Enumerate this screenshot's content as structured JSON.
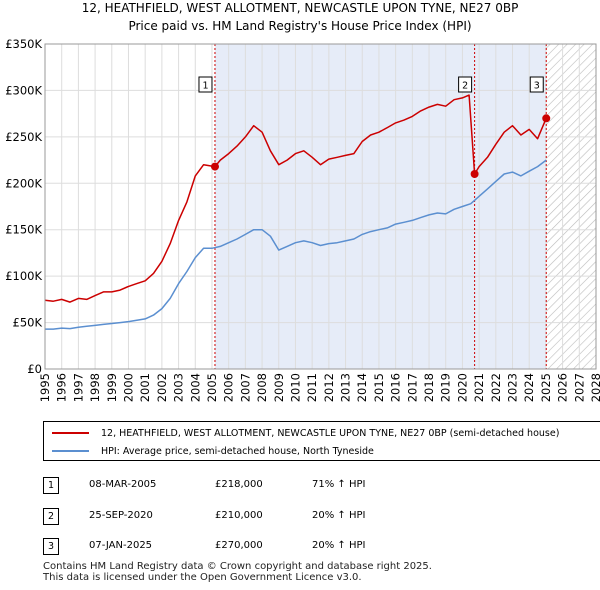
{
  "title_line1": "12, HEATHFIELD, WEST ALLOTMENT, NEWCASTLE UPON TYNE, NE27 0BP",
  "title_line2": "Price paid vs. HM Land Registry's House Price Index (HPI)",
  "colors": {
    "price_line": "#cc0000",
    "hpi_line": "#5b8fd0",
    "shade": "#e6ecf8",
    "sale_dash": "#cc0000"
  },
  "legend": {
    "price_label": "12, HEATHFIELD, WEST ALLOTMENT, NEWCASTLE UPON TYNE, NE27 0BP (semi-detached house)",
    "hpi_label": "HPI: Average price, semi-detached house, North Tyneside"
  },
  "transactions": [
    {
      "num": "1",
      "date": "08-MAR-2005",
      "price": "£218,000",
      "hpi": "71% ↑ HPI"
    },
    {
      "num": "2",
      "date": "25-SEP-2020",
      "price": "£210,000",
      "hpi": "20% ↑ HPI"
    },
    {
      "num": "3",
      "date": "07-JAN-2025",
      "price": "£270,000",
      "hpi": "20% ↑ HPI"
    }
  ],
  "footer": {
    "line1": "Contains HM Land Registry data © Crown copyright and database right 2025.",
    "line2": "This data is licensed under the Open Government Licence v3.0."
  },
  "chart_data": {
    "type": "line",
    "title": "12, HEATHFIELD, WEST ALLOTMENT, NEWCASTLE UPON TYNE, NE27 0BP",
    "subtitle": "Price paid vs. HM Land Registry's House Price Index (HPI)",
    "xlabel": "",
    "ylabel": "",
    "xlim": [
      1995,
      2028
    ],
    "ylim": [
      0,
      350000
    ],
    "x_ticks": [
      1995,
      1996,
      1997,
      1998,
      1999,
      2000,
      2001,
      2002,
      2003,
      2004,
      2005,
      2006,
      2007,
      2008,
      2009,
      2010,
      2011,
      2012,
      2013,
      2014,
      2015,
      2016,
      2017,
      2018,
      2019,
      2020,
      2021,
      2022,
      2023,
      2024,
      2025,
      2026,
      2027,
      2028
    ],
    "y_ticks": [
      {
        "value": 0,
        "label": "£0"
      },
      {
        "value": 50000,
        "label": "£50K"
      },
      {
        "value": 100000,
        "label": "£100K"
      },
      {
        "value": 150000,
        "label": "£150K"
      },
      {
        "value": 200000,
        "label": "£200K"
      },
      {
        "value": 250000,
        "label": "£250K"
      },
      {
        "value": 300000,
        "label": "£300K"
      },
      {
        "value": 350000,
        "label": "£350K"
      }
    ],
    "grid": true,
    "ownership_shade": [
      2005.18,
      2025.02
    ],
    "future_hatch_from": 2025.02,
    "sales": [
      {
        "label": "1",
        "x": 2005.18,
        "y": 218000
      },
      {
        "label": "2",
        "x": 2020.73,
        "y": 210000
      },
      {
        "label": "3",
        "x": 2025.02,
        "y": 270000
      }
    ],
    "series": [
      {
        "name": "12, HEATHFIELD, WEST ALLOTMENT, NEWCASTLE UPON TYNE, NE27 0BP (semi-detached house)",
        "x": [
          1995,
          1995.5,
          1996,
          1996.5,
          1997,
          1997.5,
          1998,
          1998.5,
          1999,
          1999.5,
          2000,
          2000.5,
          2001,
          2001.5,
          2002,
          2002.5,
          2003,
          2003.5,
          2004,
          2004.5,
          2005.18,
          2005.5,
          2006,
          2006.5,
          2007,
          2007.5,
          2008,
          2008.5,
          2009,
          2009.5,
          2010,
          2010.5,
          2011,
          2011.5,
          2012,
          2012.5,
          2013,
          2013.5,
          2014,
          2014.5,
          2015,
          2015.5,
          2016,
          2016.5,
          2017,
          2017.5,
          2018,
          2018.5,
          2019,
          2019.5,
          2020,
          2020.4,
          2020.73,
          2021,
          2021.5,
          2022,
          2022.5,
          2023,
          2023.5,
          2024,
          2024.5,
          2025.02
        ],
        "values": [
          74000,
          73000,
          75000,
          72000,
          76000,
          75000,
          79000,
          83000,
          83000,
          85000,
          89000,
          92000,
          95000,
          103000,
          116000,
          135000,
          160000,
          180000,
          208000,
          220000,
          218000,
          225000,
          232000,
          240000,
          250000,
          262000,
          255000,
          235000,
          220000,
          225000,
          232000,
          235000,
          228000,
          220000,
          226000,
          228000,
          230000,
          232000,
          245000,
          252000,
          255000,
          260000,
          265000,
          268000,
          272000,
          278000,
          282000,
          285000,
          283000,
          290000,
          292000,
          295000,
          210000,
          218000,
          228000,
          242000,
          255000,
          262000,
          252000,
          258000,
          248000,
          270000
        ]
      },
      {
        "name": "HPI: Average price, semi-detached house, North Tyneside",
        "x": [
          1995,
          1995.5,
          1996,
          1996.5,
          1997,
          1997.5,
          1998,
          1998.5,
          1999,
          1999.5,
          2000,
          2000.5,
          2001,
          2001.5,
          2002,
          2002.5,
          2003,
          2003.5,
          2004,
          2004.5,
          2005,
          2005.5,
          2006,
          2006.5,
          2007,
          2007.5,
          2008,
          2008.5,
          2009,
          2009.5,
          2010,
          2010.5,
          2011,
          2011.5,
          2012,
          2012.5,
          2013,
          2013.5,
          2014,
          2014.5,
          2015,
          2015.5,
          2016,
          2016.5,
          2017,
          2017.5,
          2018,
          2018.5,
          2019,
          2019.5,
          2020,
          2020.5,
          2021,
          2021.5,
          2022,
          2022.5,
          2023,
          2023.5,
          2024,
          2024.5,
          2025.02
        ],
        "values": [
          43000,
          43000,
          44000,
          43500,
          45000,
          46000,
          47000,
          48000,
          49000,
          50000,
          51000,
          52500,
          54000,
          58000,
          65000,
          76000,
          92000,
          105000,
          120000,
          130000,
          130000,
          132000,
          136000,
          140000,
          145000,
          150000,
          150000,
          143000,
          128000,
          132000,
          136000,
          138000,
          136000,
          133000,
          135000,
          136000,
          138000,
          140000,
          145000,
          148000,
          150000,
          152000,
          156000,
          158000,
          160000,
          163000,
          166000,
          168000,
          167000,
          172000,
          175000,
          178000,
          186000,
          194000,
          202000,
          210000,
          212000,
          208000,
          213000,
          218000,
          225000
        ]
      }
    ]
  }
}
